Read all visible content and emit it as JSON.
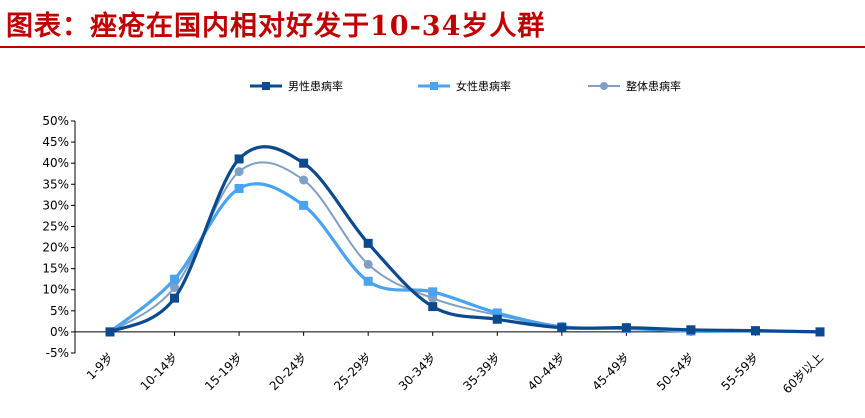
{
  "title": "图表：痤疮在国内相对好发于10-34岁人群",
  "chart_data": {
    "type": "line",
    "title": "",
    "xlabel": "",
    "ylabel": "",
    "categories": [
      "1-9岁",
      "10-14岁",
      "15-19岁",
      "20-24岁",
      "25-29岁",
      "30-34岁",
      "35-39岁",
      "40-44岁",
      "45-49岁",
      "50-54岁",
      "55-59岁",
      "60岁以上"
    ],
    "y_tick_labels": [
      "-5%",
      "0%",
      "5%",
      "10%",
      "15%",
      "20%",
      "25%",
      "30%",
      "35%",
      "40%",
      "45%",
      "50%"
    ],
    "ylim": [
      -5,
      50
    ],
    "y_unit": "%",
    "smooth": true,
    "grid": false,
    "legend_position": "top",
    "series": [
      {
        "name": "男性患病率",
        "color": "#0b4a8e",
        "marker": "square",
        "values": [
          0,
          8,
          41,
          40,
          21,
          6,
          3,
          1,
          1,
          0.5,
          0.3,
          0
        ]
      },
      {
        "name": "女性患病率",
        "color": "#4aa3f0",
        "marker": "square",
        "values": [
          0,
          12.5,
          34,
          30,
          12,
          9.5,
          4.5,
          1.2,
          0.8,
          0.2,
          0.2,
          0
        ]
      },
      {
        "name": "整体患病率",
        "color": "#7f9fc7",
        "marker": "circle",
        "values": [
          0,
          10.5,
          38,
          36,
          16,
          8,
          4,
          1.3,
          1,
          0.4,
          0.3,
          0
        ]
      }
    ]
  }
}
